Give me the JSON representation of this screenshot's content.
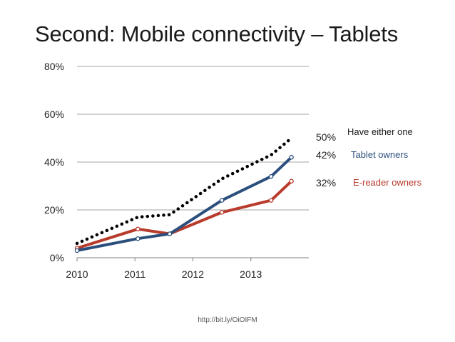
{
  "title": "Second: Mobile connectivity – Tablets",
  "source": "http://bit.ly/OiOIFM",
  "colors": {
    "either": "#000000",
    "tablet": "#2b4f7c",
    "ereader": "#b83b2c",
    "grid": "#a6a6a6"
  },
  "chart_data": {
    "type": "line",
    "title": "Second: Mobile connectivity – Tablets",
    "xlabel": "",
    "ylabel": "",
    "xlim": [
      2010,
      2014
    ],
    "ylim": [
      0,
      80
    ],
    "x_ticks": [
      "2010",
      "2011",
      "2012",
      "2013"
    ],
    "y_ticks": [
      "0%",
      "20%",
      "40%",
      "60%",
      "80%"
    ],
    "grid": true,
    "series": [
      {
        "name": "Have either one",
        "style": "dotted",
        "end_label": "50%",
        "x": [
          2010.0,
          2011.05,
          2011.6,
          2012.5,
          2013.35,
          2013.7
        ],
        "y": [
          6,
          17,
          18,
          33,
          43,
          50
        ]
      },
      {
        "name": "Tablet owners",
        "style": "solid",
        "end_label": "42%",
        "x": [
          2010.0,
          2011.05,
          2011.6,
          2012.5,
          2013.35,
          2013.7
        ],
        "y": [
          3,
          8,
          10,
          24,
          34,
          42
        ]
      },
      {
        "name": "E-reader owners",
        "style": "solid",
        "end_label": "32%",
        "x": [
          2010.0,
          2011.05,
          2011.6,
          2012.5,
          2013.35,
          2013.7
        ],
        "y": [
          4,
          12,
          10,
          19,
          24,
          32
        ]
      }
    ]
  }
}
